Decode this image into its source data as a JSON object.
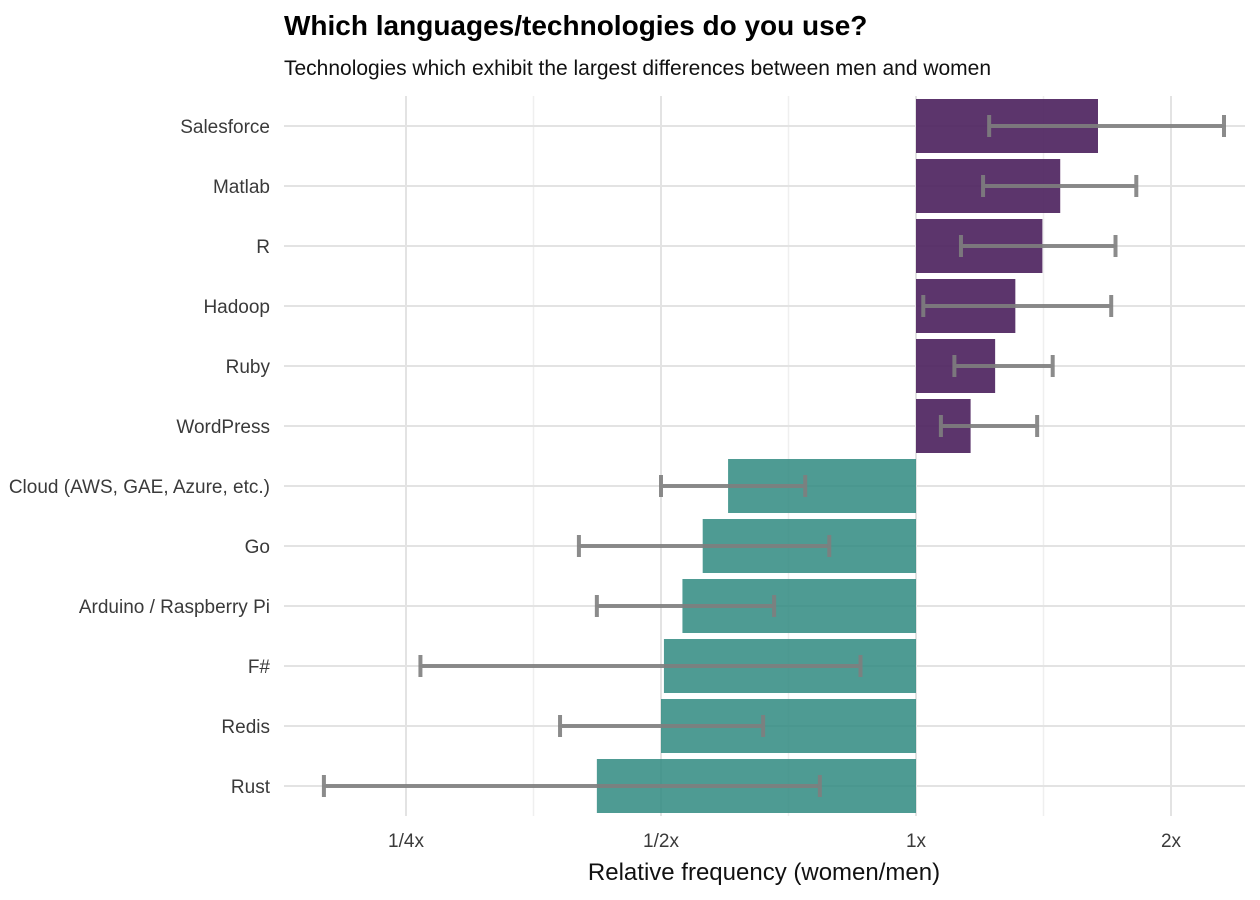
{
  "chart_data": {
    "type": "bar",
    "orientation": "horizontal",
    "title": "Which languages/technologies do you use?",
    "subtitle": "Technologies which exhibit the largest differences between men and women",
    "xlabel": "Relative frequency (women/men)",
    "ylabel": "",
    "x_scale": "log2",
    "xlim": [
      0.175,
      2.6
    ],
    "x_ticks": [
      {
        "value": 0.25,
        "label": "1/4x"
      },
      {
        "value": 0.5,
        "label": "1/2x"
      },
      {
        "value": 1,
        "label": "1x"
      },
      {
        "value": 2,
        "label": "2x"
      }
    ],
    "grid": true,
    "colors": {
      "above": "#4a1f5c",
      "below": "#2f8a80",
      "errorbar": "#7f7f7f"
    },
    "categories": [
      "Salesforce",
      "Matlab",
      "R",
      "Hadoop",
      "Ruby",
      "WordPress",
      "Cloud (AWS, GAE, Azure, etc.)",
      "Go",
      "Arduino / Raspberry Pi",
      "F#",
      "Redis",
      "Rust"
    ],
    "values": [
      1.64,
      1.48,
      1.41,
      1.31,
      1.24,
      1.16,
      0.6,
      0.56,
      0.53,
      0.504,
      0.5,
      0.42
    ],
    "ci_low": [
      1.22,
      1.2,
      1.13,
      1.02,
      1.11,
      1.07,
      0.5,
      0.4,
      0.42,
      0.26,
      0.38,
      0.2
    ],
    "ci_high": [
      2.31,
      1.82,
      1.72,
      1.7,
      1.45,
      1.39,
      0.74,
      0.79,
      0.68,
      0.86,
      0.66,
      0.77
    ]
  }
}
